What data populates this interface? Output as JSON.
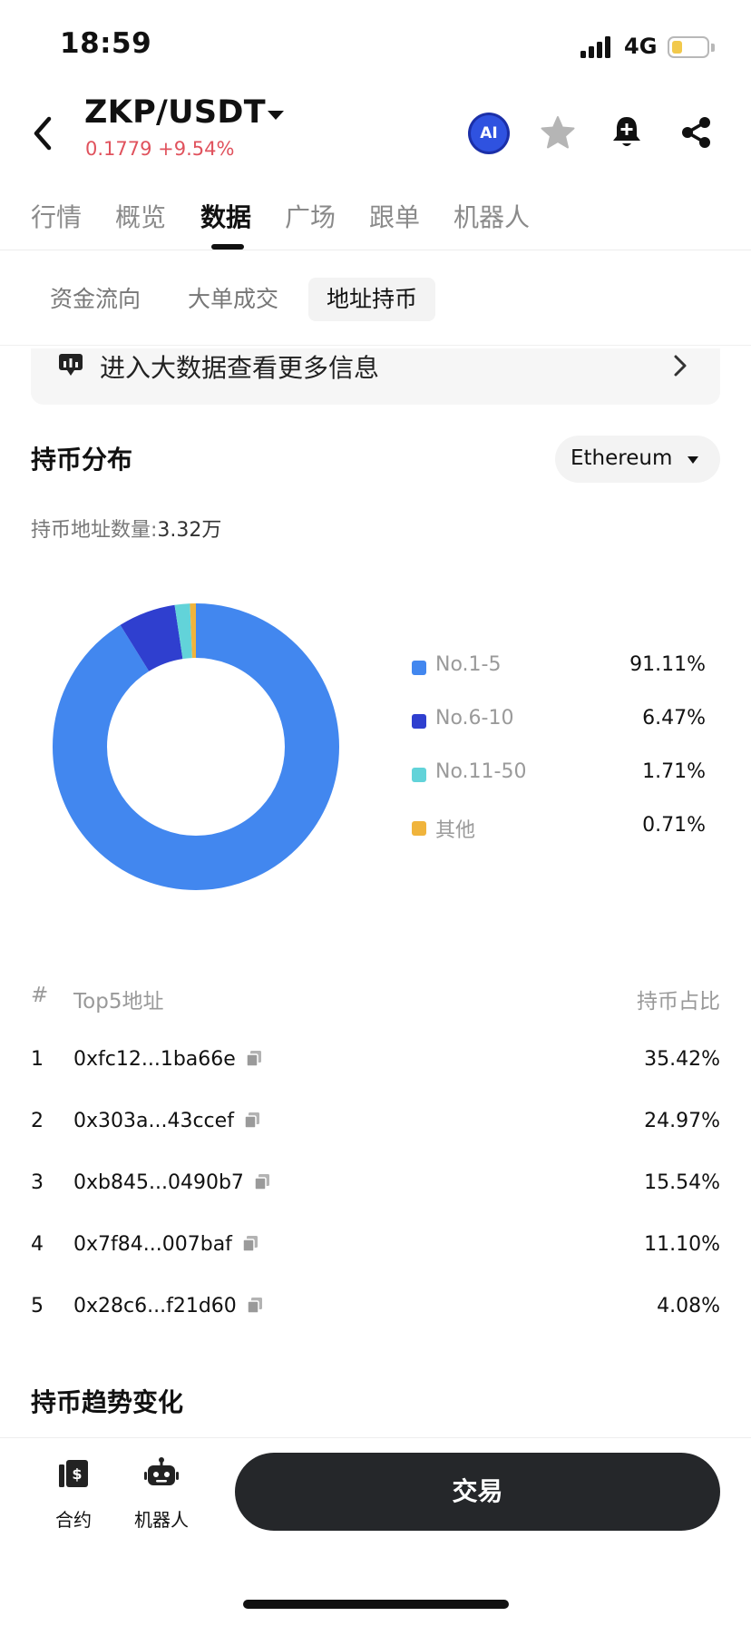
{
  "status_bar": {
    "time": "18:59",
    "network": "4G",
    "battery_level": 0.3,
    "signal_bars": 4
  },
  "header": {
    "pair": "ZKP/USDT",
    "price_change": "0.1779 +9.54%",
    "price_color": "#e0525d",
    "ai_label": "AI",
    "icons": [
      "back-icon",
      "chevron-down-icon",
      "ai-icon",
      "star-icon",
      "bell-icon",
      "share-icon"
    ]
  },
  "main_tabs": [
    {
      "label": "行情",
      "active": false
    },
    {
      "label": "概览",
      "active": false
    },
    {
      "label": "数据",
      "active": true
    },
    {
      "label": "广场",
      "active": false
    },
    {
      "label": "跟单",
      "active": false
    },
    {
      "label": "机器人",
      "active": false
    }
  ],
  "sub_tabs": [
    {
      "label": "资金流向",
      "active": false
    },
    {
      "label": "大单成交",
      "active": false
    },
    {
      "label": "地址持币",
      "active": true
    }
  ],
  "banner": {
    "text": "进入大数据查看更多信息"
  },
  "distribution": {
    "title": "持币分布",
    "chain": "Ethereum",
    "holders_label": "持币地址数量:",
    "holders_value": "3.32万"
  },
  "chart_data": {
    "type": "pie",
    "donut": true,
    "categories": [
      "No.1-5",
      "No.6-10",
      "No.11-50",
      "其他"
    ],
    "values": [
      91.11,
      6.47,
      1.71,
      0.71
    ],
    "value_labels": [
      "91.11%",
      "6.47%",
      "1.71%",
      "0.71%"
    ],
    "colors": [
      "#4287ef",
      "#2f3fcf",
      "#62d3d9",
      "#f0b43c"
    ],
    "legend": "right"
  },
  "top5": {
    "headers": {
      "rank": "#",
      "address": "Top5地址",
      "share": "持币占比"
    },
    "rows": [
      {
        "rank": "1",
        "address": "0xfc12...1ba66e",
        "share": "35.42%"
      },
      {
        "rank": "2",
        "address": "0x303a...43ccef",
        "share": "24.97%"
      },
      {
        "rank": "3",
        "address": "0xb845...0490b7",
        "share": "15.54%"
      },
      {
        "rank": "4",
        "address": "0x7f84...007baf",
        "share": "11.10%"
      },
      {
        "rank": "5",
        "address": "0x28c6...f21d60",
        "share": "4.08%"
      }
    ]
  },
  "trend": {
    "title": "持币趋势变化"
  },
  "bottom_bar": {
    "contract_label": "合约",
    "robot_label": "机器人",
    "trade_label": "交易"
  }
}
